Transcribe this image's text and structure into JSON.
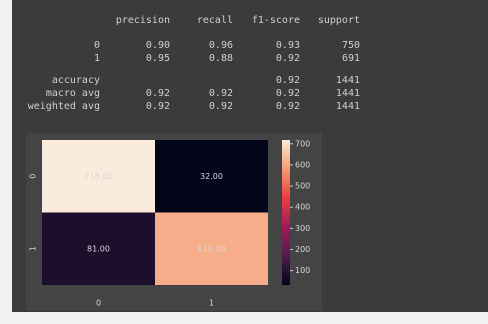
{
  "report": {
    "header": [
      "precision",
      "recall",
      "f1-score",
      "support"
    ],
    "rows": [
      [
        "0",
        "0.90",
        "0.96",
        "0.93",
        "750"
      ],
      [
        "1",
        "0.95",
        "0.88",
        "0.92",
        "691"
      ],
      [
        "accuracy",
        null,
        null,
        "0.92",
        "1441"
      ],
      [
        "macro avg",
        "0.92",
        "0.92",
        "0.92",
        "1441"
      ],
      [
        "weighted avg",
        "0.92",
        "0.92",
        "0.92",
        "1441"
      ]
    ]
  },
  "chart_data": {
    "type": "heatmap",
    "x": [
      "0",
      "1"
    ],
    "y": [
      "0",
      "1"
    ],
    "values": [
      [
        718,
        32
      ],
      [
        81,
        610
      ]
    ],
    "value_labels": [
      [
        "718.00",
        "32.00"
      ],
      [
        "81.00",
        "610.00"
      ]
    ],
    "clim": [
      32,
      718
    ],
    "cticks": [
      100,
      200,
      300,
      400,
      500,
      600,
      700
    ],
    "colormap": [
      "#03051a",
      "#4c1d4b",
      "#a11a5b",
      "#e83f3f",
      "#f69c73",
      "#faebdd"
    ]
  }
}
